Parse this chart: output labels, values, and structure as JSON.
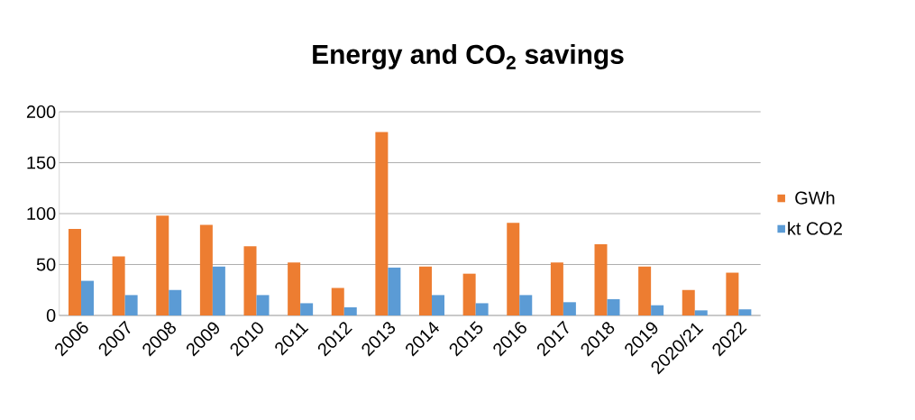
{
  "chart_data": {
    "type": "bar",
    "title": "Energy and CO$_{2}$ savings",
    "categories": [
      "2006",
      "2007",
      "2008",
      "2009",
      "2010",
      "2011",
      "2012",
      "2013",
      "2014",
      "2015",
      "2016",
      "2017",
      "2018",
      "2019",
      "2020/21",
      "2022"
    ],
    "series": [
      {
        "name": "GWh",
        "color": "#ed7d31",
        "values": [
          85,
          58,
          98,
          89,
          68,
          52,
          27,
          180,
          48,
          41,
          91,
          52,
          70,
          48,
          25,
          42
        ]
      },
      {
        "name": "kt CO2",
        "color": "#5b9bd5",
        "values": [
          34,
          20,
          25,
          48,
          20,
          12,
          8,
          47,
          20,
          12,
          20,
          13,
          16,
          10,
          5,
          6
        ]
      }
    ],
    "ylim": [
      0,
      200
    ],
    "yticks": [
      0,
      50,
      100,
      150,
      200
    ],
    "grid": "y",
    "legend": "right"
  }
}
